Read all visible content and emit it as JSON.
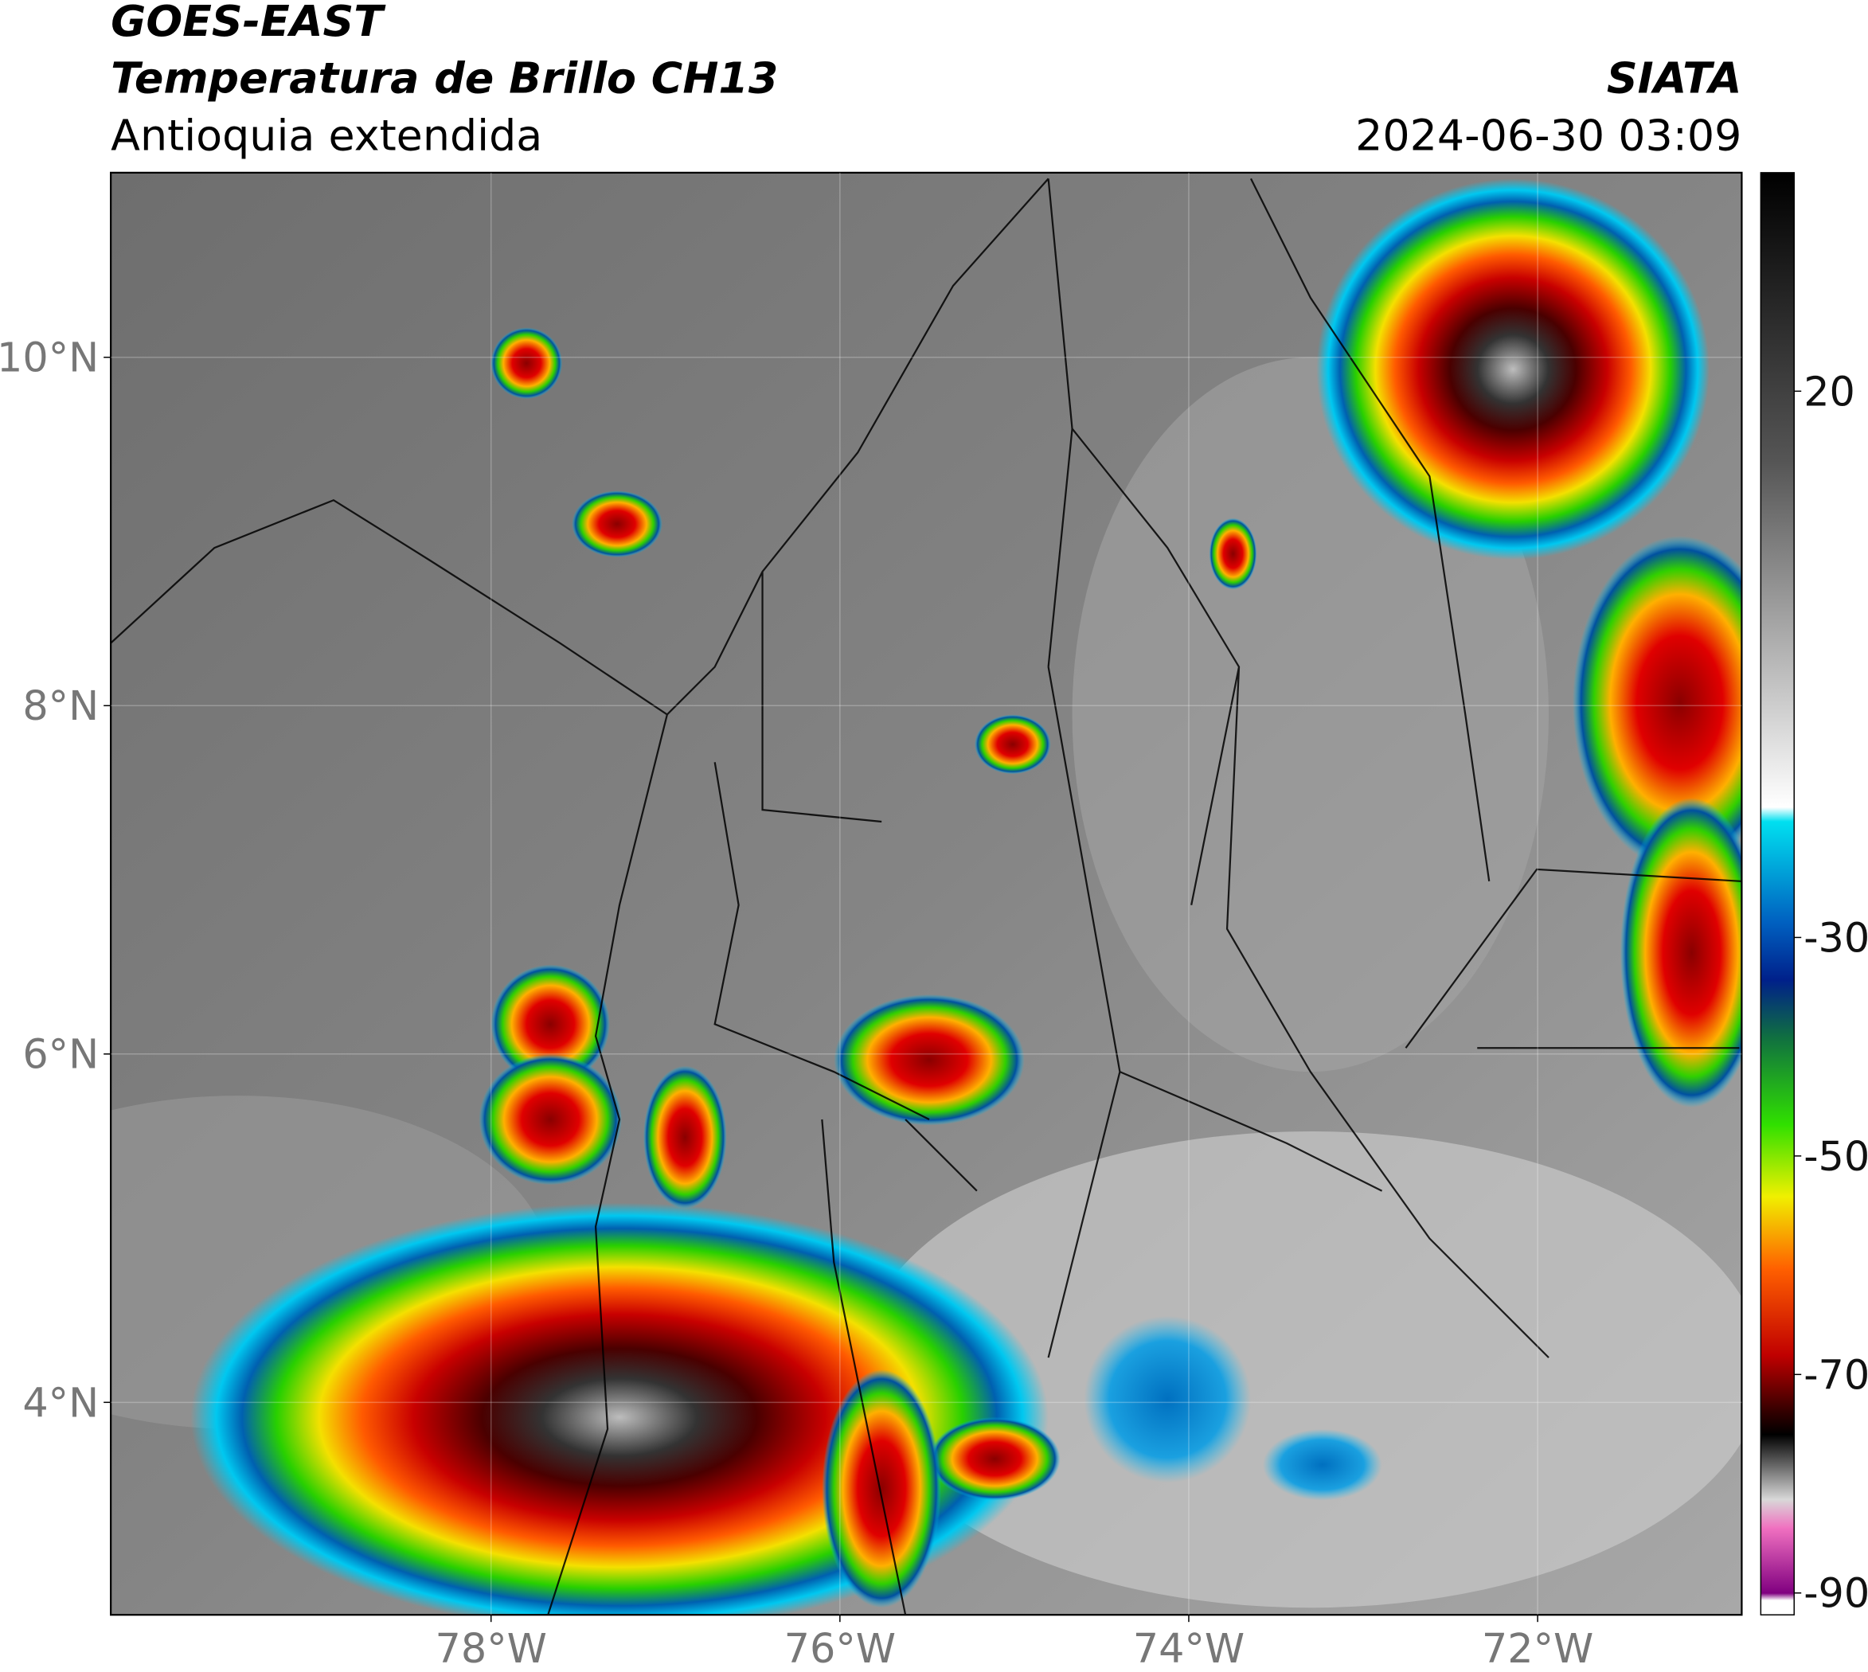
{
  "header": {
    "title": "GOES-EAST",
    "subtitle": "Temperatura de Brillo CH13",
    "region": "Antioquia extendida",
    "organization": "SIATA",
    "timestamp": "2024-06-30 03:09"
  },
  "map": {
    "xlim": [
      -80.18,
      -70.83
    ],
    "ylim": [
      2.78,
      11.06
    ],
    "xticks": [
      {
        "value": -78,
        "label": "78°W"
      },
      {
        "value": -76,
        "label": "76°W"
      },
      {
        "value": -74,
        "label": "74°W"
      },
      {
        "value": -72,
        "label": "72°W"
      }
    ],
    "yticks": [
      {
        "value": 10,
        "label": "10°N"
      },
      {
        "value": 8,
        "label": "8°N"
      },
      {
        "value": 6,
        "label": "6°N"
      },
      {
        "value": 4,
        "label": "4°N"
      }
    ],
    "grid": true
  },
  "colorbar": {
    "clim": [
      -92,
      40
    ],
    "ticks": [
      20,
      -30,
      -50,
      -70,
      -90
    ]
  }
}
